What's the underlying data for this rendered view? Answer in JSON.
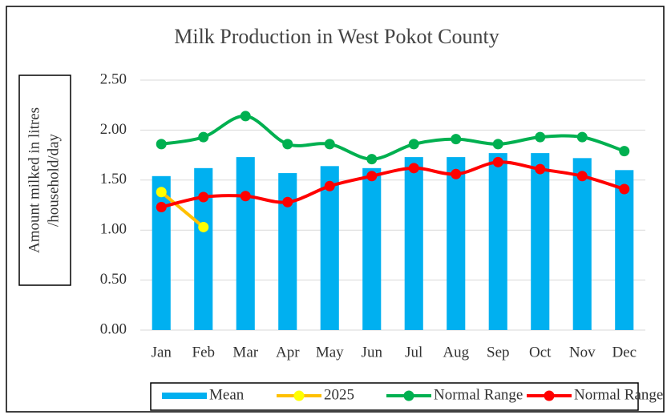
{
  "chart_data": {
    "type": "bar_line",
    "title": "Milk Production in West Pokot County",
    "ylabel": [
      "Amount milked in litres",
      "/household/day"
    ],
    "categories": [
      "Jan",
      "Feb",
      "Mar",
      "Apr",
      "May",
      "Jun",
      "Jul",
      "Aug",
      "Sep",
      "Oct",
      "Nov",
      "Dec"
    ],
    "ylim": [
      0,
      2.5
    ],
    "yticks": [
      {
        "value": 0,
        "label": "0.00"
      },
      {
        "value": 0.5,
        "label": "0.50"
      },
      {
        "value": 1,
        "label": "1.00"
      },
      {
        "value": 1.5,
        "label": "1.50"
      },
      {
        "value": 2,
        "label": "2.00"
      },
      {
        "value": 2.5,
        "label": "2.50"
      }
    ],
    "grid": true,
    "legend": "bottom",
    "series": [
      {
        "name": "Mean",
        "type": "bar",
        "color": "#00b0f0",
        "values": [
          1.54,
          1.62,
          1.73,
          1.57,
          1.64,
          1.62,
          1.73,
          1.73,
          1.77,
          1.77,
          1.72,
          1.6
        ]
      },
      {
        "name": "2025",
        "type": "line",
        "color": "#ffc000",
        "marker_color": "#ffff00",
        "smooth": false,
        "values": [
          1.38,
          1.03,
          null,
          null,
          null,
          null,
          null,
          null,
          null,
          null,
          null,
          null
        ]
      },
      {
        "name": "Normal Range",
        "type": "line",
        "color": "#00b050",
        "marker_color": "#00b050",
        "smooth": true,
        "values": [
          1.86,
          1.93,
          2.14,
          1.86,
          1.86,
          1.71,
          1.86,
          1.91,
          1.86,
          1.93,
          1.93,
          1.79
        ]
      },
      {
        "name": "Normal Range",
        "type": "line",
        "color": "#ff0000",
        "marker_color": "#ff0000",
        "smooth": true,
        "values": [
          1.23,
          1.33,
          1.34,
          1.28,
          1.44,
          1.54,
          1.62,
          1.56,
          1.68,
          1.61,
          1.54,
          1.41
        ]
      }
    ]
  }
}
